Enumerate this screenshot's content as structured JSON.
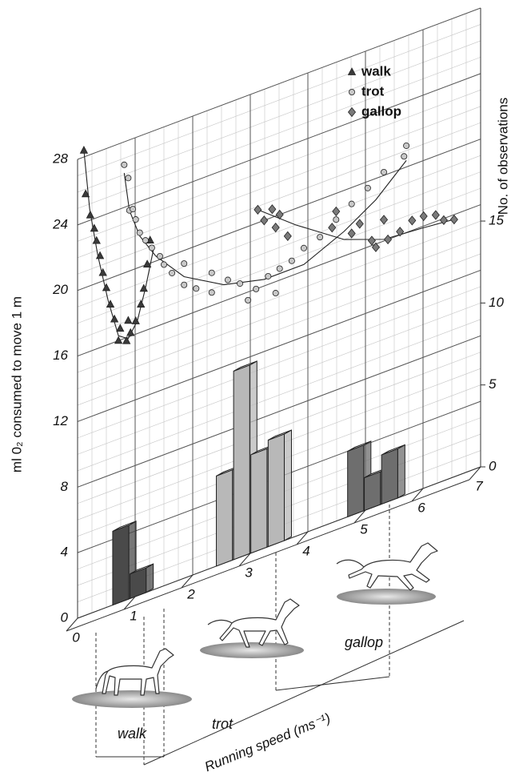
{
  "chart_data": {
    "type": "scatter",
    "y_label": "ml 0₂ consumed to move 1 m",
    "y2_label": "No. of observations",
    "x_label": "Running speed (ms⁻¹)",
    "xlim": [
      0,
      7
    ],
    "xticks": [
      0,
      1,
      2,
      3,
      4,
      5,
      6,
      7
    ],
    "ylim": [
      0,
      28
    ],
    "yticks": [
      0,
      4,
      8,
      12,
      16,
      20,
      24,
      28
    ],
    "y2lim": [
      0,
      28
    ],
    "y2ticks": [
      0,
      5,
      10,
      15
    ],
    "grid": true,
    "legend": "top-right",
    "series": [
      {
        "name": "walk",
        "color": "#3a3a3a",
        "marker": "triangle",
        "x": [
          0.11,
          0.14,
          0.22,
          0.29,
          0.33,
          0.39,
          0.44,
          0.5,
          0.57,
          0.64,
          0.71,
          0.74,
          0.85,
          0.88,
          0.92,
          1.01,
          1.1,
          1.15,
          1.21,
          1.26
        ],
        "values": [
          28.4,
          25.7,
          24.3,
          23.4,
          22.6,
          21.6,
          20.5,
          19.5,
          18.4,
          17.4,
          16.0,
          16.7,
          15.8,
          17.0,
          16.2,
          16.8,
          17.7,
          18.6,
          20.0,
          21.4
        ],
        "fit_x": [
          0.11,
          0.21,
          0.35,
          0.53,
          0.71,
          0.88,
          1.04,
          1.18,
          1.32
        ],
        "fit_values": [
          28.4,
          24.7,
          21.7,
          18.7,
          16.3,
          15.9,
          16.8,
          18.6,
          20.8
        ]
      },
      {
        "name": "trot",
        "color": "#c8c8c8",
        "marker": "circle",
        "x": [
          0.81,
          0.88,
          0.9,
          0.96,
          1.01,
          1.08,
          1.18,
          1.29,
          1.43,
          1.5,
          1.64,
          1.85,
          1.85,
          2.06,
          2.33,
          2.33,
          2.61,
          2.82,
          2.96,
          3.1,
          3.31,
          3.44,
          3.51,
          3.72,
          3.93,
          4.21,
          4.49,
          4.76,
          5.04,
          5.32,
          5.67,
          5.71
        ],
        "values": [
          26.6,
          25.7,
          23.7,
          23.7,
          23.0,
          22.1,
          21.5,
          20.9,
          20.2,
          19.6,
          18.9,
          17.9,
          19.2,
          17.4,
          16.8,
          18.0,
          17.2,
          16.7,
          15.5,
          16.0,
          16.5,
          15.3,
          16.7,
          16.9,
          17.4,
          17.7,
          18.4,
          19.0,
          19.6,
          20.2,
          20.7,
          21.3
        ],
        "fit_x": [
          0.81,
          0.9,
          1.08,
          1.36,
          1.85,
          2.54,
          3.24,
          3.93,
          4.63,
          5.18,
          5.71
        ],
        "fit_values": [
          26.1,
          23.7,
          21.9,
          20.3,
          18.4,
          17.0,
          16.4,
          16.4,
          17.5,
          18.7,
          20.4
        ]
      },
      {
        "name": "gallop",
        "color": "#7a7a7a",
        "marker": "diamond",
        "x": [
          3.13,
          3.24,
          3.38,
          3.44,
          3.51,
          3.65,
          4.42,
          4.49,
          4.76,
          4.9,
          5.11,
          5.18,
          5.32,
          5.39,
          5.6,
          5.81,
          6.01,
          6.22,
          6.36,
          6.54
        ],
        "values": [
          20.8,
          20.0,
          20.5,
          19.3,
          20.0,
          18.5,
          18.0,
          18.9,
          17.2,
          17.6,
          16.3,
          15.8,
          17.3,
          16.0,
          16.2,
          16.6,
          16.6,
          16.4,
          15.9,
          15.7
        ],
        "fit_x": [
          3.13,
          3.79,
          4.63,
          5.32,
          6.01,
          6.57
        ],
        "fit_values": [
          20.8,
          19.0,
          17.0,
          16.1,
          15.9,
          15.7
        ]
      }
    ],
    "bars": {
      "axis": "y2",
      "groups": [
        {
          "color": "#4a4a4a",
          "x": [
            0.75,
            1.05
          ],
          "values": [
            4.5,
            1.5
          ]
        },
        {
          "color": "#b8b8b8",
          "x": [
            2.55,
            2.85,
            3.15,
            3.45
          ],
          "values": [
            5.5,
            11.5,
            6,
            6.5
          ]
        },
        {
          "color": "#6e6e6e",
          "x": [
            4.83,
            5.12,
            5.42
          ],
          "values": [
            4,
            2,
            3
          ]
        }
      ]
    },
    "gait_labels": [
      "walk",
      "trot",
      "gallop"
    ]
  }
}
